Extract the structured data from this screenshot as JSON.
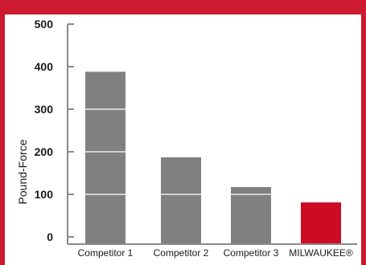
{
  "chart_data": {
    "type": "bar",
    "ylabel": "Pound-Force",
    "xlabel": "",
    "title": "",
    "ylim": [
      0,
      500
    ],
    "yticks": [
      0,
      100,
      200,
      300,
      400,
      500
    ],
    "categories": [
      "Competitor 1",
      "Competitor 2",
      "Competitor 3",
      "MILWAUKEE®"
    ],
    "values": [
      388,
      187,
      117,
      81
    ],
    "bar_colors": [
      "#808080",
      "#808080",
      "#808080",
      "#cc0b25"
    ],
    "gridlines_inside_bars": true,
    "grid": false,
    "legend": false
  },
  "colors": {
    "frame": "#cc1a2e",
    "axis": "#8a8a8a",
    "text": "#1a1a1a"
  }
}
